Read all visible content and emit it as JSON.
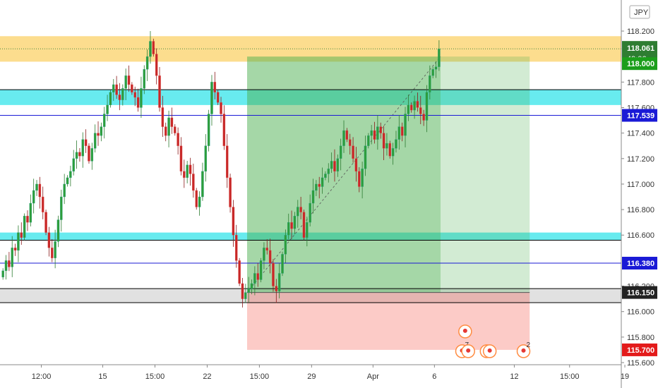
{
  "chart_data": {
    "type": "candlestick",
    "symbol_currency": "JPY",
    "current_price": "118.061",
    "countdown": "49:06",
    "ylim": [
      115.6,
      118.25
    ],
    "y_ticks": [
      "118.200",
      "117.800",
      "117.600",
      "117.400",
      "117.200",
      "117.000",
      "116.800",
      "116.600",
      "116.200",
      "116.000",
      "115.800",
      "115.600"
    ],
    "y_tick_values": [
      118.2,
      117.8,
      117.6,
      117.4,
      117.2,
      117.0,
      116.8,
      116.6,
      116.2,
      116.0,
      115.8,
      115.6
    ],
    "x_ticks": [
      "12:00",
      "15",
      "15:00",
      "22",
      "15:00",
      "29",
      "Apr",
      "6",
      "12",
      "15:00",
      "19"
    ],
    "x_tick_bars": [
      13,
      33,
      50,
      67,
      84,
      101,
      121,
      141,
      167,
      185,
      203
    ],
    "price_labels": [
      {
        "text": "118.061",
        "value": 118.061,
        "color": "#2e7d32"
      },
      {
        "text": "118.000",
        "value": 118.0,
        "color": "#1b9e1b"
      },
      {
        "text": "117.539",
        "value": 117.539,
        "color": "#1a1ad6"
      },
      {
        "text": "116.380",
        "value": 116.38,
        "color": "#1a1ad6"
      },
      {
        "text": "116.150",
        "value": 116.15,
        "color": "#222222"
      },
      {
        "text": "115.700",
        "value": 115.7,
        "color": "#e31b1b"
      }
    ],
    "zones": [
      {
        "name": "resistance",
        "from": 117.96,
        "to": 118.16,
        "color": "#fbd77a"
      },
      {
        "name": "cyan-upper",
        "from": 117.62,
        "to": 117.74,
        "color": "#4de8ec"
      },
      {
        "name": "cyan-lower",
        "from": 116.56,
        "to": 116.62,
        "color": "#4de8ec"
      },
      {
        "name": "support",
        "from": 116.07,
        "to": 116.18,
        "color": "#dcdcdc"
      }
    ],
    "h_lines": [
      {
        "value": 117.539,
        "color": "#1a1ad6"
      },
      {
        "value": 116.38,
        "color": "#1a1ad6"
      },
      {
        "value": 116.18,
        "color": "#000000"
      },
      {
        "value": 116.07,
        "color": "#000000"
      },
      {
        "value": 117.74,
        "color": "#000000"
      },
      {
        "value": 116.56,
        "color": "#000000"
      }
    ],
    "position": {
      "entry": 116.15,
      "target": 118.0,
      "stop": 115.7,
      "start_bar": 80,
      "current_bar": 143,
      "end_bar": 172
    },
    "event_counts": [
      "7",
      "2"
    ],
    "closes": [
      116.32,
      116.4,
      116.35,
      116.5,
      116.48,
      116.62,
      116.58,
      116.75,
      116.7,
      116.85,
      116.95,
      117.0,
      116.9,
      116.78,
      116.62,
      116.5,
      116.42,
      116.55,
      116.72,
      116.9,
      117.0,
      117.05,
      117.1,
      117.2,
      117.25,
      117.22,
      117.35,
      117.3,
      117.18,
      117.28,
      117.4,
      117.38,
      117.45,
      117.55,
      117.62,
      117.72,
      117.78,
      117.7,
      117.66,
      117.75,
      117.85,
      117.78,
      117.72,
      117.68,
      117.6,
      117.75,
      117.9,
      118.0,
      118.12,
      118.02,
      117.85,
      117.6,
      117.45,
      117.38,
      117.52,
      117.45,
      117.4,
      117.3,
      117.1,
      117.05,
      117.15,
      117.08,
      116.95,
      116.82,
      116.9,
      117.1,
      117.3,
      117.55,
      117.8,
      117.72,
      117.64,
      117.55,
      117.3,
      117.05,
      116.82,
      116.6,
      116.4,
      116.22,
      116.1,
      116.15,
      116.18,
      116.22,
      116.3,
      116.25,
      116.4,
      116.5,
      116.48,
      116.38,
      116.2,
      116.16,
      116.3,
      116.45,
      116.6,
      116.7,
      116.65,
      116.75,
      116.82,
      116.78,
      116.58,
      116.7,
      116.85,
      116.95,
      117.0,
      116.98,
      117.05,
      117.08,
      117.12,
      117.18,
      117.1,
      117.2,
      117.3,
      117.42,
      117.35,
      117.3,
      117.2,
      117.1,
      116.98,
      117.12,
      117.3,
      117.38,
      117.42,
      117.35,
      117.45,
      117.4,
      117.28,
      117.32,
      117.22,
      117.28,
      117.35,
      117.45,
      117.38,
      117.55,
      117.62,
      117.58,
      117.65,
      117.6,
      117.55,
      117.5,
      117.72,
      117.85,
      117.9,
      117.92,
      118.06
    ]
  }
}
